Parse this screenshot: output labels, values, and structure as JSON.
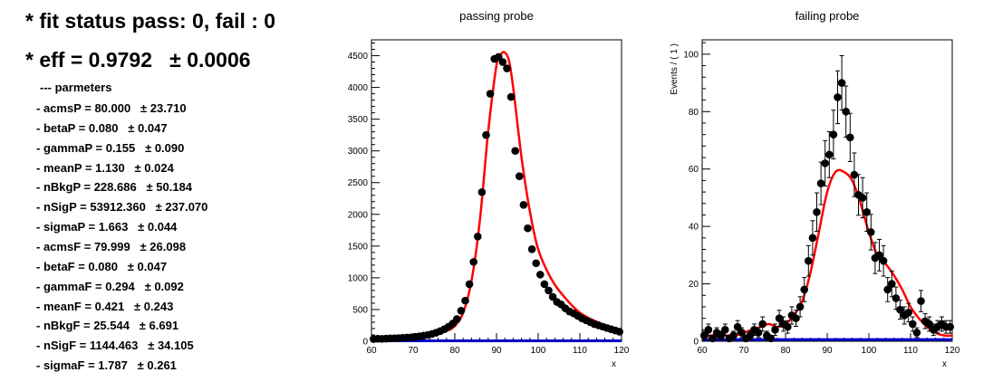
{
  "summary": {
    "status": "* fit status pass: 0, fail : 0",
    "eff": "* eff = 0.9792   ± 0.0006",
    "params_header": "--- parmeters",
    "params": [
      "- acmsP = 80.000   ± 23.710",
      "- betaP = 0.080   ± 0.047",
      "- gammaP = 0.155   ± 0.090",
      "- meanP = 1.130   ± 0.024",
      "- nBkgP = 228.686   ± 50.184",
      "- nSigP = 53912.360   ± 237.070",
      "- sigmaP = 1.663   ± 0.044",
      "- acmsF = 79.999   ± 26.098",
      "- betaF = 0.080   ± 0.047",
      "- gammaF = 0.294   ± 0.092",
      "- meanF = 0.421   ± 0.243",
      "- nBkgF = 25.544   ± 6.691",
      "- nSigF = 1144.463   ± 34.105",
      "- sigmaF = 1.787   ± 0.261"
    ]
  },
  "colors": {
    "fit": "#ff0000",
    "background": "#0000cc",
    "points": "#000000"
  },
  "chart_data": [
    {
      "type": "scatter",
      "title": "passing probe",
      "xlabel": "x",
      "ylabel": "",
      "xlim": [
        60,
        120
      ],
      "ylim": [
        0,
        4750
      ],
      "xticks": [
        60,
        70,
        80,
        90,
        100,
        110,
        120
      ],
      "yticks": [
        0,
        500,
        1000,
        1500,
        2000,
        2500,
        3000,
        3500,
        4000,
        4500
      ],
      "series": [
        {
          "kind": "data",
          "x": [
            60.5,
            61.5,
            62.5,
            63.5,
            64.5,
            65.5,
            66.5,
            67.5,
            68.5,
            69.5,
            70.5,
            71.5,
            72.5,
            73.5,
            74.5,
            75.5,
            76.5,
            77.5,
            78.5,
            79.5,
            80.5,
            81.5,
            82.5,
            83.5,
            84.5,
            85.5,
            86.5,
            87.5,
            88.5,
            89.5,
            90.5,
            91.5,
            92.5,
            93.5,
            94.5,
            95.5,
            96.5,
            97.5,
            98.5,
            99.5,
            100.5,
            101.5,
            102.5,
            103.5,
            104.5,
            105.5,
            106.5,
            107.5,
            108.5,
            109.5,
            110.5,
            111.5,
            112.5,
            113.5,
            114.5,
            115.5,
            116.5,
            117.5,
            118.5,
            119.5
          ],
          "y": [
            35,
            40,
            38,
            42,
            45,
            48,
            50,
            55,
            58,
            62,
            70,
            78,
            88,
            100,
            115,
            135,
            160,
            190,
            230,
            280,
            350,
            480,
            640,
            900,
            1250,
            1650,
            2350,
            3250,
            3900,
            4450,
            4480,
            4400,
            4300,
            3850,
            3000,
            2600,
            2150,
            1780,
            1450,
            1230,
            1050,
            900,
            800,
            700,
            620,
            580,
            520,
            470,
            440,
            400,
            360,
            330,
            300,
            270,
            250,
            230,
            210,
            190,
            170,
            150
          ]
        },
        {
          "kind": "fit",
          "x": [
            60,
            70,
            75,
            78,
            80,
            82,
            84,
            86,
            88,
            90,
            91,
            92,
            93,
            94,
            96,
            98,
            100,
            103,
            106,
            110,
            115,
            120
          ],
          "y": [
            30,
            60,
            100,
            160,
            240,
            450,
            950,
            1900,
            3300,
            4350,
            4520,
            4550,
            4420,
            4000,
            2900,
            2050,
            1450,
            1000,
            720,
            450,
            280,
            160
          ]
        },
        {
          "kind": "background",
          "x": [
            60,
            120
          ],
          "y": [
            8,
            8
          ]
        }
      ]
    },
    {
      "type": "scatter",
      "title": "failing probe",
      "xlabel": "x",
      "ylabel": "Events / ( 1 )",
      "xlim": [
        60,
        120
      ],
      "ylim": [
        0,
        105
      ],
      "xticks": [
        60,
        70,
        80,
        90,
        100,
        110,
        120
      ],
      "yticks": [
        0,
        20,
        40,
        60,
        80,
        100
      ],
      "series": [
        {
          "kind": "data",
          "x": [
            60.5,
            61.5,
            62.5,
            63.5,
            64.5,
            65.5,
            66.5,
            67.5,
            68.5,
            69.5,
            70.5,
            71.5,
            72.5,
            73.5,
            74.5,
            75.5,
            76.5,
            77.5,
            78.5,
            79.5,
            80.5,
            81.5,
            82.5,
            83.5,
            84.5,
            85.5,
            86.5,
            87.5,
            88.5,
            89.5,
            90.5,
            91.5,
            92.5,
            93.5,
            94.5,
            95.5,
            96.5,
            97.5,
            98.5,
            99.5,
            100.5,
            101.5,
            102.5,
            103.5,
            104.5,
            105.5,
            106.5,
            107.5,
            108.5,
            109.5,
            110.5,
            111.5,
            112.5,
            113.5,
            114.5,
            115.5,
            116.5,
            117.5,
            118.5,
            119.5
          ],
          "y": [
            2,
            4,
            1,
            3,
            2,
            4,
            1,
            2,
            5,
            3,
            1,
            2,
            4,
            3,
            6,
            2,
            1,
            4,
            8,
            6,
            5,
            9,
            8,
            12,
            18,
            28,
            36,
            45,
            55,
            62,
            65,
            72,
            85,
            90,
            80,
            71,
            58,
            51,
            50,
            45,
            38,
            29,
            30,
            28,
            18,
            20,
            15,
            11,
            9,
            10,
            6,
            3,
            14,
            7,
            6,
            4,
            5,
            6,
            5,
            5
          ],
          "err": [
            1.5,
            2,
            1,
            1.7,
            1.5,
            2,
            1,
            1.5,
            2.2,
            1.7,
            1,
            1.5,
            2,
            1.7,
            2.5,
            1.5,
            1,
            2,
            2.8,
            2.5,
            2.2,
            3,
            2.8,
            3.5,
            4.2,
            5.3,
            6,
            6.7,
            7.4,
            7.9,
            8,
            8.5,
            9.2,
            9.5,
            8.9,
            8.4,
            7.6,
            7.1,
            7,
            6.7,
            6.2,
            5.4,
            5.5,
            5.3,
            4.2,
            4.5,
            3.9,
            3.3,
            3,
            3.2,
            2.5,
            1.7,
            3.7,
            2.6,
            2.5,
            2,
            2.2,
            2.5,
            2.2,
            2.2
          ]
        },
        {
          "kind": "fit",
          "x": [
            60,
            62,
            64,
            66,
            68,
            70,
            72,
            74,
            76,
            78,
            80,
            82,
            84,
            86,
            88,
            90,
            92,
            94,
            96,
            98,
            100,
            102,
            104,
            106,
            108,
            110,
            112,
            114,
            116,
            118,
            120
          ],
          "y": [
            1,
            2,
            2,
            2,
            2,
            3,
            4,
            5,
            6,
            5,
            6,
            9,
            14,
            24,
            38,
            52,
            59,
            59,
            56,
            48,
            38,
            30,
            27,
            23,
            18,
            12,
            8,
            5,
            3,
            2,
            2
          ]
        },
        {
          "kind": "background",
          "x": [
            60,
            120
          ],
          "y": [
            0.6,
            0.6
          ]
        }
      ]
    }
  ]
}
